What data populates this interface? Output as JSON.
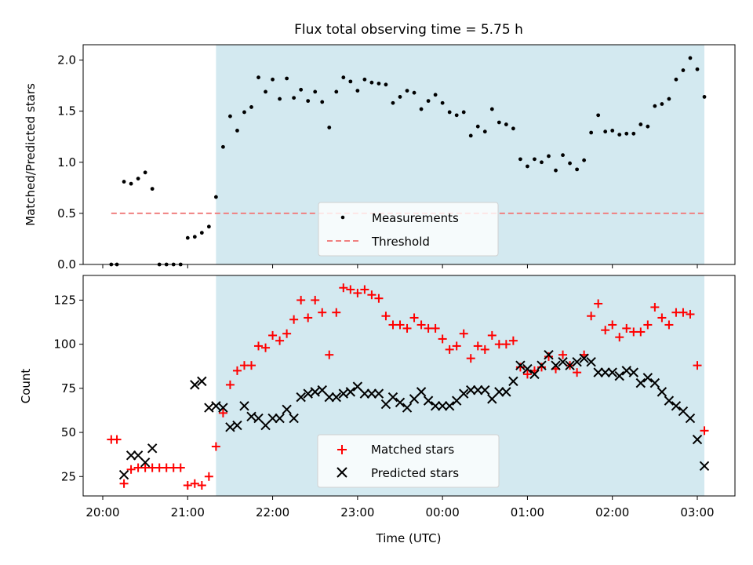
{
  "title": "Flux total observing time = 5.75 h",
  "colors": {
    "observing_band": "#d3e9f0",
    "measurement": "#000000",
    "threshold": "#f08080",
    "matched": "#ff0000",
    "predicted": "#000000"
  },
  "chart_data": [
    {
      "type": "scatter",
      "ylabel": "Matched/Predicted stars",
      "ylim": [
        0.0,
        2.15
      ],
      "yticks": [
        "0.0",
        "0.5",
        "1.0",
        "1.5",
        "2.0"
      ],
      "grid": false,
      "legend_position": "lower-center",
      "observing_window": [
        "21:20",
        "03:05"
      ],
      "threshold": 0.5,
      "threshold_x_range": [
        "20:06",
        "03:06"
      ],
      "series": [
        {
          "name": "Measurements",
          "marker": "dot",
          "times": [
            "20:06",
            "20:10",
            "20:15",
            "20:20",
            "20:25",
            "20:30",
            "20:35",
            "20:40",
            "20:45",
            "20:50",
            "20:55",
            "21:00",
            "21:05",
            "21:10",
            "21:15",
            "21:20",
            "21:25",
            "21:30",
            "21:35",
            "21:40",
            "21:45",
            "21:50",
            "21:55",
            "22:00",
            "22:05",
            "22:10",
            "22:15",
            "22:20",
            "22:25",
            "22:30",
            "22:35",
            "22:40",
            "22:45",
            "22:50",
            "22:55",
            "23:00",
            "23:05",
            "23:10",
            "23:15",
            "23:20",
            "23:25",
            "23:30",
            "23:35",
            "23:40",
            "23:45",
            "23:50",
            "23:55",
            "00:00",
            "00:05",
            "00:10",
            "00:15",
            "00:20",
            "00:25",
            "00:30",
            "00:35",
            "00:40",
            "00:45",
            "00:50",
            "00:55",
            "01:00",
            "01:05",
            "01:10",
            "01:15",
            "01:20",
            "01:25",
            "01:30",
            "01:35",
            "01:40",
            "01:45",
            "01:50",
            "01:55",
            "02:00",
            "02:05",
            "02:10",
            "02:15",
            "02:20",
            "02:25",
            "02:30",
            "02:35",
            "02:40",
            "02:45",
            "02:50",
            "02:55",
            "03:00",
            "03:05"
          ],
          "values": [
            0.0,
            0.0,
            0.81,
            0.79,
            0.84,
            0.9,
            0.74,
            0.0,
            0.0,
            0.0,
            0.0,
            0.26,
            0.27,
            0.31,
            0.37,
            0.66,
            1.15,
            1.45,
            1.31,
            1.49,
            1.54,
            1.83,
            1.69,
            1.81,
            1.62,
            1.82,
            1.63,
            1.71,
            1.6,
            1.69,
            1.59,
            1.34,
            1.69,
            1.83,
            1.79,
            1.7,
            1.81,
            1.78,
            1.77,
            1.76,
            1.58,
            1.64,
            1.7,
            1.68,
            1.52,
            1.6,
            1.66,
            1.58,
            1.49,
            1.46,
            1.49,
            1.26,
            1.35,
            1.3,
            1.52,
            1.39,
            1.37,
            1.33,
            1.03,
            0.96,
            1.03,
            1.0,
            1.06,
            0.92,
            1.07,
            0.99,
            0.93,
            1.02,
            1.29,
            1.46,
            1.3,
            1.31,
            1.27,
            1.28,
            1.28,
            1.37,
            1.35,
            1.55,
            1.57,
            1.62,
            1.81,
            1.9,
            2.02,
            1.91,
            1.64
          ]
        },
        {
          "name": "Threshold",
          "style": "dashed"
        }
      ]
    },
    {
      "type": "scatter",
      "ylabel": "Count",
      "xlabel": "Time (UTC)",
      "ylim": [
        14,
        139
      ],
      "yticks": [
        "25",
        "50",
        "75",
        "100",
        "125"
      ],
      "xticks": [
        "20:00",
        "21:00",
        "22:00",
        "23:00",
        "00:00",
        "01:00",
        "02:00",
        "03:00"
      ],
      "grid": false,
      "legend_position": "lower-center",
      "observing_window": [
        "21:20",
        "03:05"
      ],
      "series": [
        {
          "name": "Matched stars",
          "marker": "plus",
          "points": [
            [
              "20:06",
              46
            ],
            [
              "20:10",
              46
            ],
            [
              "20:15",
              21
            ],
            [
              "20:20",
              29
            ],
            [
              "20:25",
              30
            ],
            [
              "20:30",
              30
            ],
            [
              "20:35",
              30
            ],
            [
              "20:40",
              30
            ],
            [
              "20:45",
              30
            ],
            [
              "20:50",
              30
            ],
            [
              "20:55",
              30
            ],
            [
              "21:00",
              20
            ],
            [
              "21:05",
              21
            ],
            [
              "21:10",
              20
            ],
            [
              "21:15",
              25
            ],
            [
              "21:20",
              42
            ],
            [
              "21:25",
              61
            ],
            [
              "21:30",
              77
            ],
            [
              "21:35",
              85
            ],
            [
              "21:40",
              88
            ],
            [
              "21:45",
              88
            ],
            [
              "21:50",
              99
            ],
            [
              "21:55",
              98
            ],
            [
              "22:00",
              105
            ],
            [
              "22:05",
              102
            ],
            [
              "22:10",
              106
            ],
            [
              "22:15",
              114
            ],
            [
              "22:20",
              125
            ],
            [
              "22:25",
              115
            ],
            [
              "22:30",
              125
            ],
            [
              "22:35",
              118
            ],
            [
              "22:40",
              94
            ],
            [
              "22:45",
              118
            ],
            [
              "22:50",
              132
            ],
            [
              "22:55",
              131
            ],
            [
              "23:00",
              129
            ],
            [
              "23:05",
              131
            ],
            [
              "23:10",
              128
            ],
            [
              "23:15",
              126
            ],
            [
              "23:20",
              116
            ],
            [
              "23:25",
              111
            ],
            [
              "23:30",
              111
            ],
            [
              "23:35",
              109
            ],
            [
              "23:40",
              115
            ],
            [
              "23:45",
              111
            ],
            [
              "23:50",
              109
            ],
            [
              "23:55",
              109
            ],
            [
              "00:00",
              103
            ],
            [
              "00:05",
              97
            ],
            [
              "00:10",
              99
            ],
            [
              "00:15",
              106
            ],
            [
              "00:20",
              92
            ],
            [
              "00:25",
              99
            ],
            [
              "00:30",
              97
            ],
            [
              "00:35",
              105
            ],
            [
              "00:40",
              100
            ],
            [
              "00:45",
              100
            ],
            [
              "00:50",
              102
            ],
            [
              "00:55",
              87
            ],
            [
              "01:00",
              83
            ],
            [
              "01:05",
              85
            ],
            [
              "01:10",
              87
            ],
            [
              "01:15",
              93
            ],
            [
              "01:20",
              86
            ],
            [
              "01:25",
              94
            ],
            [
              "01:30",
              88
            ],
            [
              "01:35",
              84
            ],
            [
              "01:40",
              94
            ],
            [
              "01:45",
              116
            ],
            [
              "01:50",
              123
            ],
            [
              "01:55",
              108
            ],
            [
              "02:00",
              111
            ],
            [
              "02:05",
              104
            ],
            [
              "02:10",
              109
            ],
            [
              "02:15",
              107
            ],
            [
              "02:20",
              107
            ],
            [
              "02:25",
              111
            ],
            [
              "02:30",
              121
            ],
            [
              "02:35",
              115
            ],
            [
              "02:40",
              111
            ],
            [
              "02:45",
              118
            ],
            [
              "02:50",
              118
            ],
            [
              "02:55",
              117
            ],
            [
              "03:00",
              88
            ],
            [
              "03:05",
              51
            ]
          ]
        },
        {
          "name": "Predicted stars",
          "marker": "x",
          "points": [
            [
              "20:15",
              26
            ],
            [
              "20:20",
              37
            ],
            [
              "20:25",
              37
            ],
            [
              "20:30",
              33
            ],
            [
              "20:35",
              41
            ],
            [
              "21:05",
              77
            ],
            [
              "21:10",
              79
            ],
            [
              "21:15",
              64
            ],
            [
              "21:20",
              65
            ],
            [
              "21:25",
              64
            ],
            [
              "21:30",
              53
            ],
            [
              "21:35",
              54
            ],
            [
              "21:40",
              65
            ],
            [
              "21:45",
              59
            ],
            [
              "21:50",
              58
            ],
            [
              "21:55",
              54
            ],
            [
              "22:00",
              58
            ],
            [
              "22:05",
              58
            ],
            [
              "22:10",
              63
            ],
            [
              "22:15",
              58
            ],
            [
              "22:20",
              70
            ],
            [
              "22:25",
              72
            ],
            [
              "22:30",
              73
            ],
            [
              "22:35",
              74
            ],
            [
              "22:40",
              70
            ],
            [
              "22:45",
              70
            ],
            [
              "22:50",
              72
            ],
            [
              "22:55",
              73
            ],
            [
              "23:00",
              76
            ],
            [
              "23:05",
              72
            ],
            [
              "23:10",
              72
            ],
            [
              "23:15",
              72
            ],
            [
              "23:20",
              66
            ],
            [
              "23:25",
              70
            ],
            [
              "23:30",
              67
            ],
            [
              "23:35",
              64
            ],
            [
              "23:40",
              69
            ],
            [
              "23:45",
              73
            ],
            [
              "23:50",
              68
            ],
            [
              "23:55",
              65
            ],
            [
              "00:00",
              65
            ],
            [
              "00:05",
              65
            ],
            [
              "00:10",
              68
            ],
            [
              "00:15",
              72
            ],
            [
              "00:20",
              74
            ],
            [
              "00:25",
              74
            ],
            [
              "00:30",
              74
            ],
            [
              "00:35",
              69
            ],
            [
              "00:40",
              73
            ],
            [
              "00:45",
              73
            ],
            [
              "00:50",
              79
            ],
            [
              "00:55",
              88
            ],
            [
              "01:00",
              86
            ],
            [
              "01:05",
              83
            ],
            [
              "01:10",
              88
            ],
            [
              "01:15",
              94
            ],
            [
              "01:20",
              88
            ],
            [
              "01:25",
              90
            ],
            [
              "01:30",
              88
            ],
            [
              "01:35",
              90
            ],
            [
              "01:40",
              92
            ],
            [
              "01:45",
              90
            ],
            [
              "01:50",
              84
            ],
            [
              "01:55",
              84
            ],
            [
              "02:00",
              84
            ],
            [
              "02:05",
              82
            ],
            [
              "02:10",
              85
            ],
            [
              "02:15",
              84
            ],
            [
              "02:20",
              78
            ],
            [
              "02:25",
              81
            ],
            [
              "02:30",
              78
            ],
            [
              "02:35",
              73
            ],
            [
              "02:40",
              68
            ],
            [
              "02:45",
              65
            ],
            [
              "02:50",
              62
            ],
            [
              "02:55",
              58
            ],
            [
              "03:00",
              46
            ],
            [
              "03:05",
              31
            ]
          ]
        }
      ]
    }
  ]
}
